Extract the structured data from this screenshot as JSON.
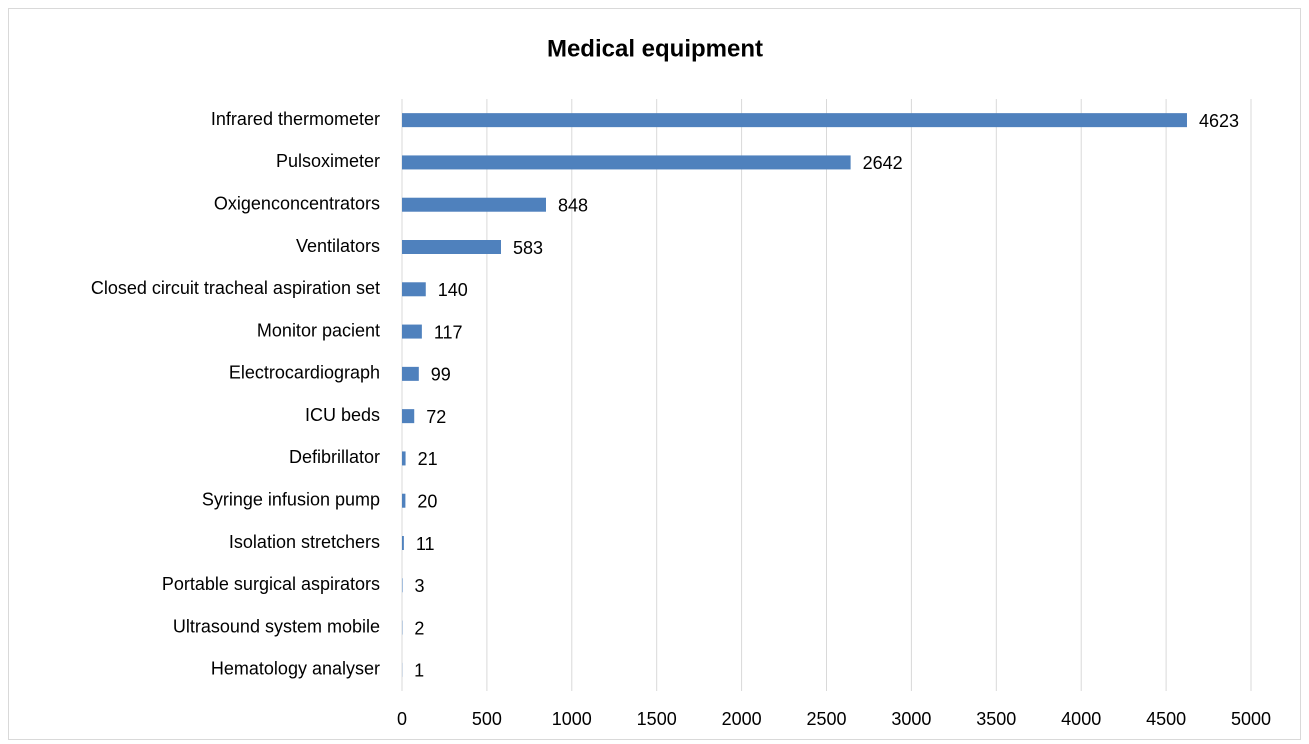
{
  "chart_data": {
    "type": "bar",
    "orientation": "horizontal",
    "title": "Medical equipment",
    "categories": [
      "Infrared thermometer",
      "Pulsoximeter",
      "Oxigenconcentrators",
      "Ventilators",
      "Closed circuit tracheal aspiration set",
      "Monitor pacient",
      "Electrocardiograph",
      "ICU beds",
      "Defibrillator",
      "Syringe infusion pump",
      "Isolation stretchers",
      "Portable surgical aspirators",
      "Ultrasound system mobile",
      "Hematology analyser"
    ],
    "values": [
      4623,
      2642,
      848,
      583,
      140,
      117,
      99,
      72,
      21,
      20,
      11,
      3,
      2,
      1
    ],
    "color": "#4f81bd",
    "xlim": [
      0,
      5000
    ],
    "xticks": [
      0,
      500,
      1000,
      1500,
      2000,
      2500,
      3000,
      3500,
      4000,
      4500,
      5000
    ],
    "grid": true
  }
}
